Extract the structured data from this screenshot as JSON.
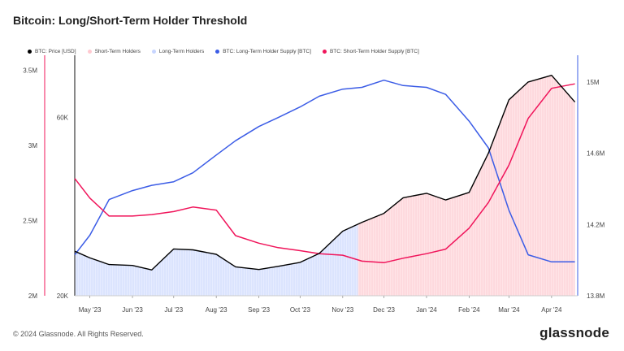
{
  "title": "Bitcoin: Long/Short-Term Holder Threshold",
  "footer": {
    "copyright": "© 2024 Glassnode. All Rights Reserved.",
    "brand": "glassnode"
  },
  "colors": {
    "price": "#000000",
    "sth": "#ffc9d0",
    "lth": "#c7d5ff",
    "lth_supply": "#3b5ce6",
    "sth_supply": "#f0145a"
  },
  "chart_data": {
    "type": "line",
    "title": "Bitcoin: Long/Short-Term Holder Threshold",
    "legend": [
      {
        "name": "BTC: Price [USD]",
        "color": "#000000"
      },
      {
        "name": "Short-Term Holders",
        "color": "#ffc9d0"
      },
      {
        "name": "Long-Term Holders",
        "color": "#c7d5ff"
      },
      {
        "name": "BTC: Long-Term Holder Supply [BTC]",
        "color": "#3b5ce6"
      },
      {
        "name": "BTC: Short-Term Holder Supply [BTC]",
        "color": "#f0145a"
      }
    ],
    "x_ticks": [
      "May '23",
      "Jun '23",
      "Jul '23",
      "Aug '23",
      "Sep '23",
      "Oct '23",
      "Nov '23",
      "Dec '23",
      "Jan '24",
      "Feb '24",
      "Mar '24",
      "Apr '24"
    ],
    "x_range": [
      "2023-04-20",
      "2024-04-20"
    ],
    "y_left_sth_ticks": [
      "3.5M",
      "3M",
      "2.5M",
      "2M"
    ],
    "y_left_sth_range": [
      2000000,
      3600000
    ],
    "y_left_price_ticks": [
      "60K",
      "20K"
    ],
    "y_left_price_range": [
      20000,
      74000
    ],
    "y_right_ticks": [
      "15M",
      "14.6M",
      "14.2M",
      "13.8M"
    ],
    "y_right_range": [
      13800000,
      15150000
    ],
    "shading": {
      "long_term_until": "2023-11-12",
      "short_term_from": "2023-11-12"
    },
    "dates": [
      "2023-04-20",
      "2023-05-01",
      "2023-05-15",
      "2023-06-01",
      "2023-06-15",
      "2023-07-01",
      "2023-07-15",
      "2023-08-01",
      "2023-08-15",
      "2023-09-01",
      "2023-09-15",
      "2023-10-01",
      "2023-10-15",
      "2023-11-01",
      "2023-11-15",
      "2023-12-01",
      "2023-12-15",
      "2024-01-01",
      "2024-01-15",
      "2024-02-01",
      "2024-02-15",
      "2024-03-01",
      "2024-03-15",
      "2024-04-01",
      "2024-04-18"
    ],
    "series": [
      {
        "name": "BTC: Price [USD]",
        "axis": "price",
        "values": [
          30000,
          28500,
          27000,
          26800,
          25800,
          30500,
          30300,
          29300,
          26500,
          25900,
          26600,
          27500,
          29500,
          34500,
          36500,
          38500,
          42000,
          43000,
          41500,
          43200,
          52000,
          64000,
          68000,
          69500,
          63500
        ]
      },
      {
        "name": "BTC: Long-Term Holder Supply [BTC]",
        "axis": "right",
        "values": [
          14030000,
          14140000,
          14340000,
          14390000,
          14420000,
          14440000,
          14490000,
          14590000,
          14670000,
          14750000,
          14800000,
          14860000,
          14920000,
          14960000,
          14970000,
          15010000,
          14980000,
          14970000,
          14930000,
          14780000,
          14630000,
          14280000,
          14030000,
          13990000,
          13990000
        ]
      },
      {
        "name": "BTC: Short-Term Holder Supply [BTC]",
        "axis": "left",
        "values": [
          2780000,
          2650000,
          2530000,
          2530000,
          2540000,
          2560000,
          2590000,
          2570000,
          2400000,
          2350000,
          2320000,
          2300000,
          2280000,
          2270000,
          2230000,
          2220000,
          2250000,
          2280000,
          2310000,
          2450000,
          2620000,
          2870000,
          3180000,
          3380000,
          3410000
        ]
      }
    ]
  }
}
